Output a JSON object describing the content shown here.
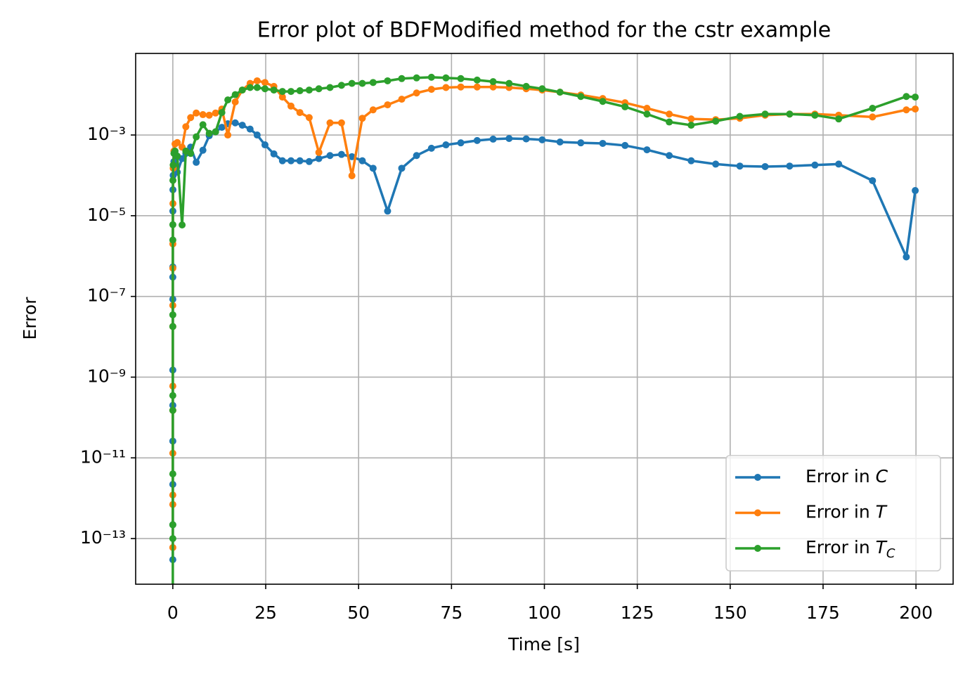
{
  "chart_data": {
    "type": "line",
    "title": "Error plot of BDFModified method for the cstr example",
    "xlabel": "Time [s]",
    "ylabel": "Error",
    "x": [
      0,
      1e-06,
      3e-06,
      1e-05,
      3e-05,
      0.0001,
      0.0003,
      0.001,
      0.003,
      0.01,
      0.03,
      0.1,
      0.3,
      0.6,
      1.2,
      2.5,
      3.5,
      4.8,
      6.3,
      8.1,
      9.8,
      11.5,
      13.2,
      14.8,
      16.8,
      18.7,
      20.8,
      22.7,
      24.8,
      27.2,
      29.5,
      31.8,
      34.2,
      36.7,
      39.3,
      42.3,
      45.4,
      48.2,
      51,
      53.9,
      57.8,
      61.6,
      65.6,
      69.6,
      73.5,
      77.5,
      81.9,
      86.2,
      90.5,
      95.1,
      99.4,
      104.2,
      109.8,
      115.7,
      121.7,
      127.6,
      133.6,
      139.5,
      146.1,
      152.6,
      159.4,
      166,
      172.8,
      179.2,
      188.3,
      197.4,
      199.8
    ],
    "series": [
      {
        "name": "Error in C",
        "color": "#1f77b4",
        "values": [
          3e-14,
          2.2e-13,
          2.2e-12,
          2.6e-11,
          2e-10,
          1.5e-09,
          8.5e-08,
          3e-07,
          5.4e-07,
          1.3e-05,
          4.4e-05,
          0.0001,
          0.00022,
          0.00035,
          0.00012,
          0.00026,
          0.00035,
          0.0005,
          0.00021,
          0.00042,
          0.00096,
          0.0012,
          0.00155,
          0.0019,
          0.002,
          0.00175,
          0.0014,
          0.001,
          0.00057,
          0.00034,
          0.00023,
          0.00023,
          0.00023,
          0.00022,
          0.00026,
          0.00031,
          0.00033,
          0.00029,
          0.00023,
          0.00015,
          1.3e-05,
          0.00015,
          0.00031,
          0.00047,
          0.00057,
          0.00064,
          0.00073,
          0.00079,
          0.00082,
          0.0008,
          0.00076,
          0.00067,
          0.00064,
          0.00062,
          0.00055,
          0.00043,
          0.00031,
          0.00023,
          0.00019,
          0.00017,
          0.000165,
          0.00017,
          0.00018,
          0.00019,
          7.4e-05,
          9.5e-07,
          4.2e-05
        ]
      },
      {
        "name": "Error in T",
        "color": "#ff7f0e",
        "values": [
          6e-14,
          7e-13,
          1.2e-12,
          1.3e-11,
          1.5e-10,
          6e-10,
          1.8e-08,
          6e-08,
          5e-07,
          2e-06,
          2e-05,
          0.00015,
          0.0004,
          0.0006,
          0.00065,
          0.0005,
          0.0016,
          0.0027,
          0.0035,
          0.0032,
          0.0031,
          0.0035,
          0.0044,
          0.001,
          0.0066,
          0.013,
          0.019,
          0.022,
          0.02,
          0.016,
          0.0087,
          0.0052,
          0.0036,
          0.0027,
          0.00037,
          0.002,
          0.002,
          9.8e-05,
          0.0026,
          0.0042,
          0.0056,
          0.0077,
          0.011,
          0.0135,
          0.015,
          0.0155,
          0.0155,
          0.0155,
          0.015,
          0.014,
          0.013,
          0.0115,
          0.0098,
          0.008,
          0.0063,
          0.0046,
          0.0033,
          0.0025,
          0.0024,
          0.0026,
          0.0031,
          0.0033,
          0.0033,
          0.0031,
          0.0028,
          0.0042,
          0.0044
        ]
      },
      {
        "name": "Error in T_C",
        "color": "#2ca02c",
        "values": [
          5e-15,
          1e-13,
          2.2e-13,
          4e-12,
          1.5e-10,
          3.5e-10,
          1.8e-08,
          3.5e-08,
          2.5e-06,
          6e-06,
          7.5e-05,
          0.00018,
          0.00035,
          0.0004,
          0.0003,
          5.9e-06,
          0.0004,
          0.00035,
          0.0009,
          0.0018,
          0.0011,
          0.0012,
          0.0036,
          0.0074,
          0.01,
          0.013,
          0.015,
          0.015,
          0.014,
          0.013,
          0.012,
          0.012,
          0.0125,
          0.013,
          0.014,
          0.015,
          0.017,
          0.019,
          0.019,
          0.02,
          0.022,
          0.025,
          0.026,
          0.027,
          0.026,
          0.025,
          0.023,
          0.021,
          0.019,
          0.016,
          0.014,
          0.0115,
          0.009,
          0.0068,
          0.005,
          0.0033,
          0.0021,
          0.00175,
          0.0022,
          0.0029,
          0.0033,
          0.0033,
          0.0031,
          0.0025,
          0.0046,
          0.009,
          0.0087
        ]
      }
    ],
    "xlim": [
      -10,
      210
    ],
    "xticks": [
      0,
      25,
      50,
      75,
      100,
      125,
      150,
      175,
      200
    ],
    "ylim": [
      7.4e-15,
      0.105
    ],
    "ylog": true,
    "yticks": [
      {
        "value": 1e-13,
        "label": "10⁻¹³"
      },
      {
        "value": 1e-11,
        "label": "10⁻¹¹"
      },
      {
        "value": 1e-09,
        "label": "10⁻⁹"
      },
      {
        "value": 1e-07,
        "label": "10⁻⁷"
      },
      {
        "value": 1e-05,
        "label": "10⁻⁵"
      },
      {
        "value": 0.001,
        "label": "10⁻³"
      }
    ],
    "grid": true,
    "legend": "lower right",
    "markers": true
  }
}
